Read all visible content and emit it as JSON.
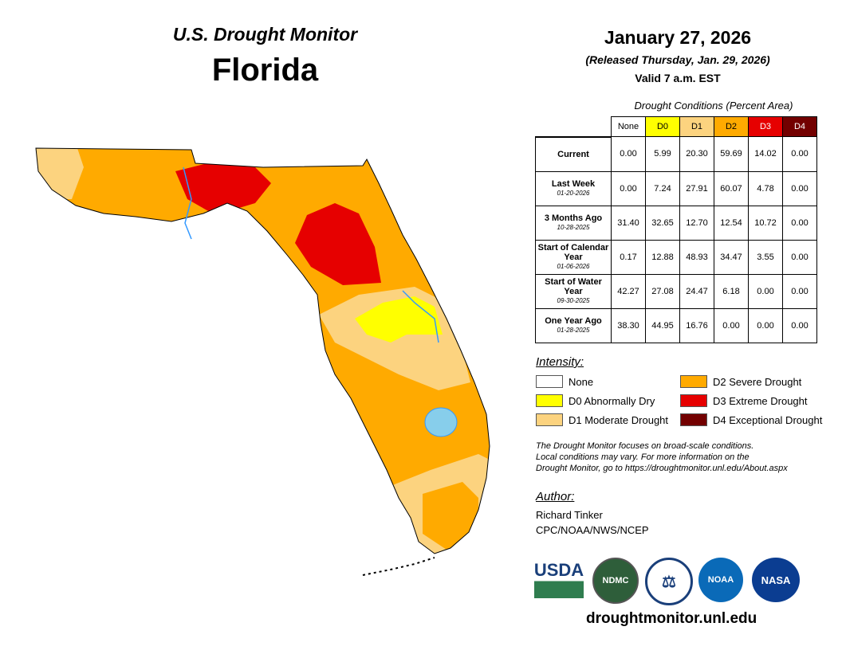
{
  "header": {
    "brand": "U.S. Drought Monitor",
    "state": "Florida",
    "date": "January 27, 2026",
    "released": "(Released Thursday, Jan. 29, 2026)",
    "valid": "Valid 7 a.m. EST"
  },
  "table": {
    "caption": "Drought Conditions (Percent Area)",
    "columns": [
      "None",
      "D0",
      "D1",
      "D2",
      "D3",
      "D4"
    ],
    "rows": [
      {
        "label": "Current",
        "date": "",
        "values": [
          "0.00",
          "5.99",
          "20.30",
          "59.69",
          "14.02",
          "0.00"
        ]
      },
      {
        "label": "Last Week",
        "date": "01-20-2026",
        "values": [
          "0.00",
          "7.24",
          "27.91",
          "60.07",
          "4.78",
          "0.00"
        ]
      },
      {
        "label": "3 Months Ago",
        "date": "10-28-2025",
        "values": [
          "31.40",
          "32.65",
          "12.70",
          "12.54",
          "10.72",
          "0.00"
        ]
      },
      {
        "label": "Start of Calendar Year",
        "date": "01-06-2026",
        "values": [
          "0.17",
          "12.88",
          "48.93",
          "34.47",
          "3.55",
          "0.00"
        ]
      },
      {
        "label": "Start of Water Year",
        "date": "09-30-2025",
        "values": [
          "42.27",
          "27.08",
          "24.47",
          "6.18",
          "0.00",
          "0.00"
        ]
      },
      {
        "label": "One Year Ago",
        "date": "01-28-2025",
        "values": [
          "38.30",
          "44.95",
          "16.76",
          "0.00",
          "0.00",
          "0.00"
        ]
      }
    ]
  },
  "legend": {
    "title": "Intensity:",
    "items": [
      {
        "label": "None",
        "color": "#ffffff"
      },
      {
        "label": "D0 Abnormally Dry",
        "color": "#ffff00"
      },
      {
        "label": "D1 Moderate Drought",
        "color": "#fcd37f"
      },
      {
        "label": "D2 Severe Drought",
        "color": "#ffaa00"
      },
      {
        "label": "D3 Extreme Drought",
        "color": "#e60000"
      },
      {
        "label": "D4 Exceptional Drought",
        "color": "#730000"
      }
    ]
  },
  "note": [
    "The Drought Monitor focuses on broad-scale conditions.",
    "Local conditions may vary. For more information on the",
    "Drought Monitor, go to https://droughtmonitor.unl.edu/About.aspx"
  ],
  "author": {
    "heading": "Author:",
    "name": "Richard Tinker",
    "org": "CPC/NOAA/NWS/NCEP"
  },
  "logos": [
    "USDA",
    "NDMC",
    "NOAA",
    "NASA"
  ],
  "footer_url": "droughtmonitor.unl.edu"
}
